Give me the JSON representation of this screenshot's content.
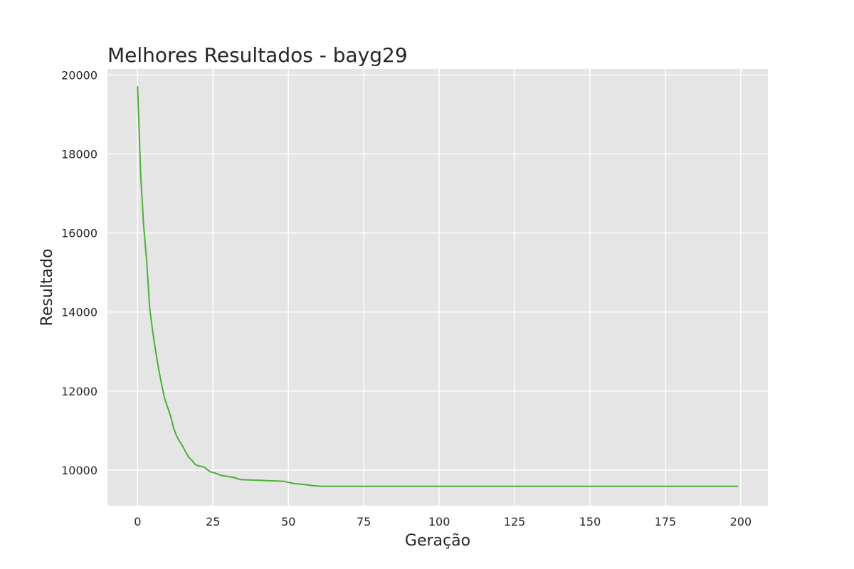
{
  "chart_data": {
    "type": "line",
    "title": "Melhores Resultados - bayg29",
    "xlabel": "Geração",
    "ylabel": "Resultado",
    "xlim": [
      -10,
      209
    ],
    "ylim": [
      9100,
      20150
    ],
    "xticks": [
      0,
      25,
      50,
      75,
      100,
      125,
      150,
      175,
      200
    ],
    "yticks": [
      10000,
      12000,
      14000,
      16000,
      18000,
      20000
    ],
    "grid": true,
    "background_color": "#e5e5e5",
    "series": [
      {
        "color": "#4daf3a",
        "x": [
          0,
          1,
          2,
          3,
          4,
          5,
          6,
          7,
          8,
          9,
          10,
          11,
          12,
          13,
          14,
          15,
          16,
          17,
          18,
          19,
          20,
          22,
          24,
          26,
          28,
          30,
          32,
          34,
          36,
          40,
          44,
          48,
          50,
          52,
          55,
          58,
          61,
          199
        ],
        "values": [
          19700,
          17500,
          16200,
          15300,
          14100,
          13500,
          13000,
          12550,
          12150,
          11800,
          11580,
          11350,
          11050,
          10850,
          10720,
          10600,
          10450,
          10320,
          10250,
          10150,
          10110,
          10080,
          9960,
          9920,
          9860,
          9840,
          9810,
          9760,
          9755,
          9745,
          9730,
          9720,
          9690,
          9660,
          9640,
          9610,
          9590,
          9590
        ]
      }
    ]
  }
}
